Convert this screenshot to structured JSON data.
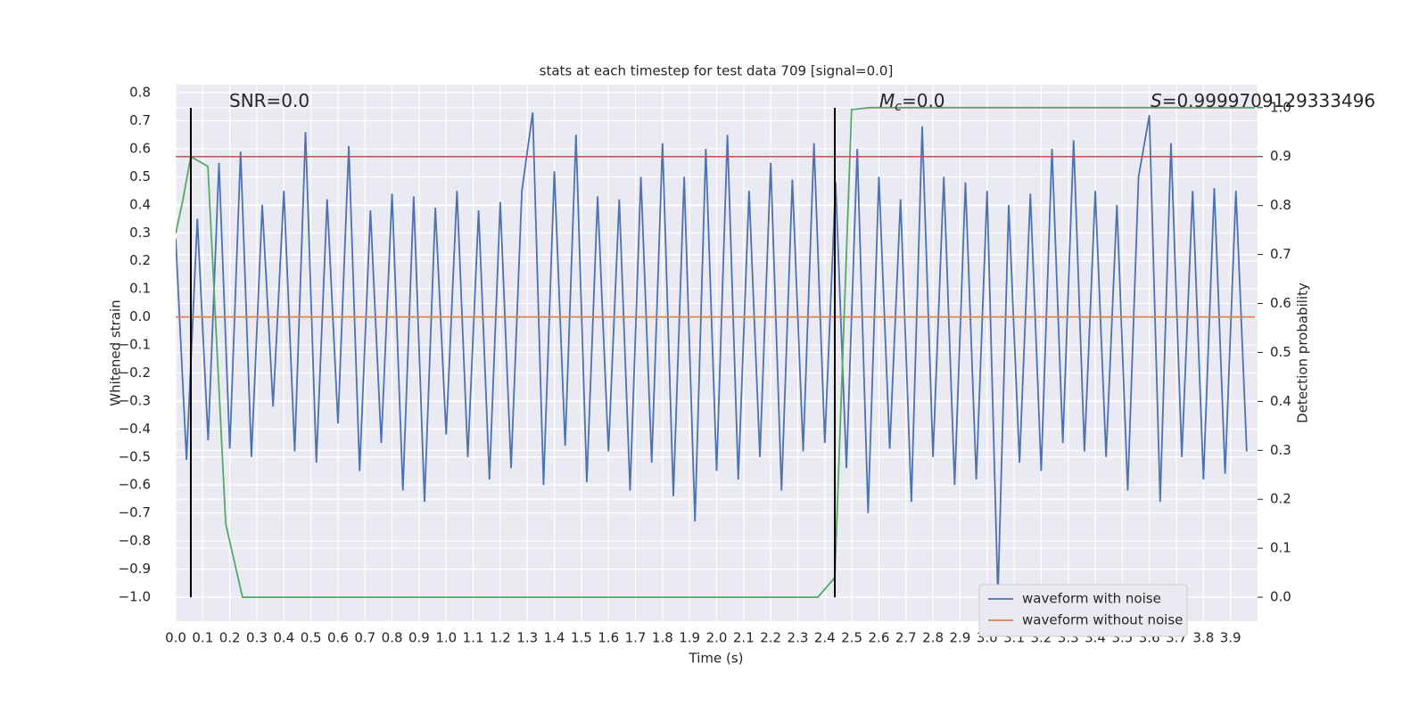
{
  "chart_data": {
    "type": "line",
    "title": "stats at each timestep for test data 709 [signal=0.0]",
    "xlabel": "Time (s)",
    "ylabel": "Whitened strain",
    "y2label": "Detection probability",
    "grid": true,
    "legend": "lower right",
    "xlim": [
      0,
      4.0
    ],
    "ylim": [
      -1.086,
      0.829
    ],
    "y2lim": [
      -0.049,
      1.047
    ],
    "xticks": [
      {
        "value": 0,
        "label": "0.0"
      },
      0.1,
      0.2,
      0.3,
      0.4,
      0.5,
      0.6,
      0.7,
      0.8,
      0.9,
      {
        "value": 1,
        "label": "1.0"
      },
      1.1,
      1.2,
      1.3,
      1.4,
      1.5,
      1.6,
      1.7,
      1.8,
      1.9,
      {
        "value": 2,
        "label": "2.0"
      },
      2.1,
      2.2,
      2.3,
      2.4,
      2.5,
      2.6,
      2.7,
      2.8,
      2.9,
      {
        "value": 3,
        "label": "3.0"
      },
      3.1,
      3.2,
      3.3,
      3.4,
      3.5,
      3.6,
      3.7,
      3.8,
      3.9
    ],
    "yticks": [
      0.8,
      0.7,
      0.6,
      0.5,
      0.4,
      0.3,
      0.2,
      0.1,
      {
        "value": 0,
        "label": "0.0"
      },
      {
        "value": -0.1,
        "label": "−0.1"
      },
      {
        "value": -0.2,
        "label": "−0.2"
      },
      {
        "value": -0.3,
        "label": "−0.3"
      },
      {
        "value": -0.4,
        "label": "−0.4"
      },
      {
        "value": -0.5,
        "label": "−0.5"
      },
      {
        "value": -0.6,
        "label": "−0.6"
      },
      {
        "value": -0.7,
        "label": "−0.7"
      },
      {
        "value": -0.8,
        "label": "−0.8"
      },
      {
        "value": -0.9,
        "label": "−0.9"
      },
      {
        "value": -1,
        "label": "−1.0"
      }
    ],
    "y2ticks": [
      {
        "value": 0,
        "label": "0.0"
      },
      0.1,
      0.2,
      0.3,
      0.4,
      0.5,
      0.6,
      0.7,
      0.8,
      0.9,
      {
        "value": 1,
        "label": "1.0"
      }
    ],
    "series": [
      {
        "name": "waveform with noise",
        "color": "#4c72b0",
        "x": [
          0,
          0.04,
          0.08,
          0.12,
          0.16,
          0.2,
          0.24,
          0.28,
          0.32,
          0.36,
          0.4,
          0.44,
          0.48,
          0.52,
          0.56,
          0.6,
          0.64,
          0.68,
          0.72,
          0.76,
          0.8,
          0.84,
          0.88,
          0.92,
          0.96,
          1.0,
          1.04,
          1.08,
          1.12,
          1.16,
          1.2,
          1.24,
          1.28,
          1.32,
          1.36,
          1.4,
          1.44,
          1.48,
          1.52,
          1.56,
          1.6,
          1.64,
          1.68,
          1.72,
          1.76,
          1.8,
          1.84,
          1.88,
          1.92,
          1.96,
          2.0,
          2.04,
          2.08,
          2.12,
          2.16,
          2.2,
          2.24,
          2.28,
          2.32,
          2.36,
          2.4,
          2.44,
          2.48,
          2.52,
          2.56,
          2.6,
          2.64,
          2.68,
          2.72,
          2.76,
          2.8,
          2.84,
          2.88,
          2.92,
          2.96,
          3.0,
          3.04,
          3.08,
          3.12,
          3.16,
          3.2,
          3.24,
          3.28,
          3.32,
          3.36,
          3.4,
          3.44,
          3.48,
          3.52,
          3.56,
          3.6,
          3.64,
          3.68,
          3.72,
          3.76,
          3.8,
          3.84,
          3.88,
          3.92,
          3.96
        ],
        "values": [
          0.28,
          -0.51,
          0.35,
          -0.44,
          0.55,
          -0.47,
          0.59,
          -0.5,
          0.4,
          -0.32,
          0.45,
          -0.48,
          0.66,
          -0.52,
          0.42,
          -0.38,
          0.61,
          -0.55,
          0.38,
          -0.45,
          0.44,
          -0.62,
          0.43,
          -0.66,
          0.39,
          -0.42,
          0.45,
          -0.5,
          0.38,
          -0.58,
          0.41,
          -0.54,
          0.45,
          0.73,
          -0.6,
          0.52,
          -0.46,
          0.65,
          -0.59,
          0.43,
          -0.48,
          0.42,
          -0.62,
          0.5,
          -0.52,
          0.62,
          -0.64,
          0.5,
          -0.73,
          0.6,
          -0.55,
          0.65,
          -0.58,
          0.45,
          -0.5,
          0.55,
          -0.62,
          0.49,
          -0.48,
          0.62,
          -0.45,
          0.48,
          -0.54,
          0.6,
          -0.7,
          0.5,
          -0.47,
          0.42,
          -0.66,
          0.68,
          -0.5,
          0.5,
          -0.6,
          0.48,
          -0.58,
          0.45,
          -1.0,
          0.4,
          -0.52,
          0.44,
          -0.55,
          0.6,
          -0.45,
          0.63,
          -0.48,
          0.45,
          -0.5,
          0.4,
          -0.62,
          0.5,
          0.72,
          -0.66,
          0.62,
          -0.5,
          0.45,
          -0.58,
          0.46,
          -0.56,
          0.45,
          -0.48
        ]
      },
      {
        "name": "waveform without noise",
        "color": "#dd8452",
        "x": [
          0,
          3.99
        ],
        "values": [
          0,
          0
        ]
      },
      {
        "color": "#55a868",
        "axis": "y2",
        "x": [
          0,
          0.026,
          0.056,
          0.119,
          0.185,
          0.247,
          2.374,
          2.437,
          2.499,
          2.565,
          3.99
        ],
        "values": [
          0.743,
          0.81,
          0.9,
          0.88,
          0.15,
          0,
          0,
          0.04,
          0.996,
          1.0,
          1.0
        ]
      }
    ],
    "hlines": [
      {
        "value": 0.9,
        "axis": "y2",
        "color": "#c44e52"
      }
    ],
    "vlines": [
      {
        "value": 0.056,
        "color": "#000000"
      },
      {
        "value": 2.437,
        "color": "#000000"
      }
    ],
    "annotations": [
      {
        "text": "SNR=0.0"
      },
      {
        "symbol": "M",
        "subscript": "c",
        "text": "=0.0"
      },
      {
        "symbol": "S",
        "text": "=0.9999709129333496"
      }
    ]
  }
}
